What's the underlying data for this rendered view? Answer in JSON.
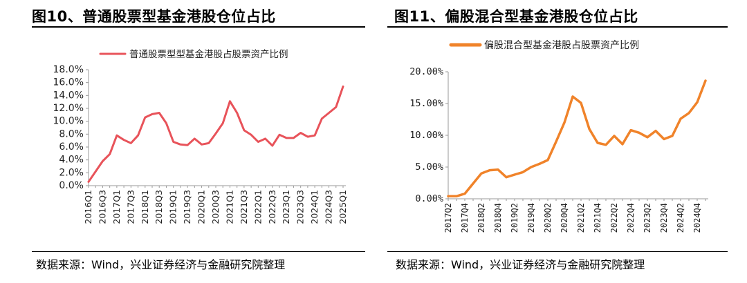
{
  "charts": [
    {
      "figure_title": "图10、普通股票型基金港股仓位占比",
      "source": "数据来源：Wind，兴业证券经济与金融研究院整理",
      "color": "#E8535A",
      "legend": "普通股票型型基金港股占股票资产比例",
      "y_ticks": [
        "18.0%",
        "16.0%",
        "14.0%",
        "12.0%",
        "10.0%",
        "8.0%",
        "6.0%",
        "4.0%",
        "2.0%",
        "0.0%"
      ],
      "x_ticks": [
        "2016Q1",
        "2016Q3",
        "2017Q1",
        "2017Q3",
        "2018Q1",
        "2018Q3",
        "2019Q1",
        "2019Q3",
        "2020Q1",
        "2020Q3",
        "2021Q1",
        "2021Q3",
        "2022Q1",
        "2022Q3",
        "2023Q1",
        "2023Q3",
        "2024Q1",
        "2024Q3",
        "2025Q1"
      ]
    },
    {
      "figure_title": "图11、偏股混合型基金港股仓位占比",
      "source": "数据来源：Wind，兴业证券经济与金融研究院整理",
      "color": "#F0832A",
      "legend": "偏股混合型基金港股占股票资产比例",
      "y_ticks": [
        "20.00%",
        "15.00%",
        "10.00%",
        "5.00%",
        "0.00%"
      ],
      "x_ticks": [
        "2017Q2",
        "2017Q4",
        "2018Q2",
        "2018Q4",
        "2019Q2",
        "2019Q4",
        "2020Q2",
        "2020Q4",
        "2021Q2",
        "2021Q4",
        "2022Q2",
        "2022Q4",
        "2023Q2",
        "2023Q4",
        "2024Q2",
        "2024Q4"
      ]
    }
  ],
  "chart_data": [
    {
      "type": "line",
      "title": "",
      "series": [
        {
          "name": "普通股票型型基金港股占股票资产比例",
          "values": [
            0.6,
            2.2,
            3.8,
            4.9,
            7.8,
            7.1,
            6.6,
            7.8,
            10.6,
            11.1,
            11.3,
            9.7,
            6.8,
            6.4,
            6.3,
            7.3,
            6.4,
            6.6,
            8.1,
            9.7,
            13.1,
            11.3,
            8.6,
            7.9,
            6.8,
            7.3,
            6.2,
            7.9,
            7.4,
            7.4,
            8.2,
            7.6,
            7.8,
            10.4,
            11.3,
            12.2,
            15.4
          ]
        }
      ],
      "x": [
        "2016Q1",
        "2016Q2",
        "2016Q3",
        "2016Q4",
        "2017Q1",
        "2017Q2",
        "2017Q3",
        "2017Q4",
        "2018Q1",
        "2018Q2",
        "2018Q3",
        "2018Q4",
        "2019Q1",
        "2019Q2",
        "2019Q3",
        "2019Q4",
        "2020Q1",
        "2020Q2",
        "2020Q3",
        "2020Q4",
        "2021Q1",
        "2021Q2",
        "2021Q3",
        "2021Q4",
        "2022Q1",
        "2022Q2",
        "2022Q3",
        "2022Q4",
        "2023Q1",
        "2023Q2",
        "2023Q3",
        "2023Q4",
        "2024Q1",
        "2024Q2",
        "2024Q3",
        "2024Q4",
        "2025Q1"
      ],
      "ylim": [
        0,
        18
      ],
      "y_tick_step": 2,
      "grid": false,
      "legend_position": "top"
    },
    {
      "type": "line",
      "title": "",
      "series": [
        {
          "name": "偏股混合型基金港股占股票资产比例",
          "values": [
            0.4,
            0.4,
            0.8,
            2.4,
            4.0,
            4.5,
            4.6,
            3.4,
            3.8,
            4.2,
            5.0,
            5.5,
            6.1,
            9.0,
            12.0,
            16.1,
            15.1,
            11.0,
            8.8,
            8.5,
            9.9,
            8.6,
            10.8,
            10.4,
            9.7,
            10.7,
            9.4,
            9.9,
            12.6,
            13.5,
            15.2,
            18.6
          ]
        }
      ],
      "x": [
        "2017Q2",
        "2017Q3",
        "2017Q4",
        "2018Q1",
        "2018Q2",
        "2018Q3",
        "2018Q4",
        "2019Q1",
        "2019Q2",
        "2019Q3",
        "2019Q4",
        "2020Q1",
        "2020Q2",
        "2020Q3",
        "2020Q4",
        "2021Q1",
        "2021Q2",
        "2021Q3",
        "2021Q4",
        "2022Q1",
        "2022Q2",
        "2022Q3",
        "2022Q4",
        "2023Q1",
        "2023Q2",
        "2023Q3",
        "2023Q4",
        "2024Q1",
        "2024Q2",
        "2024Q3",
        "2024Q4",
        "2025Q1"
      ],
      "ylim": [
        0,
        20
      ],
      "y_tick_step": 5,
      "grid": false,
      "legend_position": "top"
    }
  ]
}
